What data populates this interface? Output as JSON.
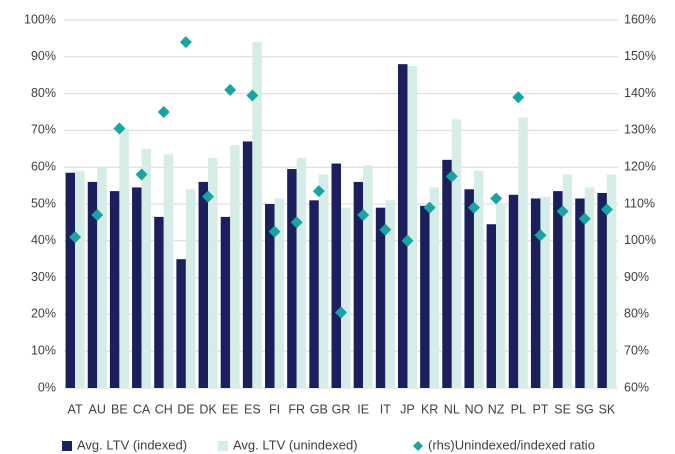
{
  "chart_data": {
    "type": "bar",
    "categories": [
      "AT",
      "AU",
      "BE",
      "CA",
      "CH",
      "DE",
      "DK",
      "EE",
      "ES",
      "FI",
      "FR",
      "GB",
      "GR",
      "IE",
      "IT",
      "JP",
      "KR",
      "NL",
      "NO",
      "NZ",
      "PL",
      "PT",
      "SE",
      "SG",
      "SK"
    ],
    "series": [
      {
        "name": "Avg. LTV (indexed)",
        "color": "#1b1f5c",
        "type": "bar",
        "values": [
          58.5,
          56,
          53.5,
          54.5,
          46.5,
          35,
          56,
          46.5,
          67,
          50,
          59.5,
          51,
          61,
          56,
          49,
          88,
          49.5,
          62,
          54,
          44.5,
          52.5,
          51.5,
          53.5,
          51.5,
          53
        ]
      },
      {
        "name": "Avg. LTV (unindexed)",
        "color": "#d5ece7",
        "type": "bar",
        "values": [
          59,
          60,
          70.5,
          65,
          63.5,
          54,
          62.5,
          66,
          94,
          51.5,
          62.5,
          58,
          49,
          60.5,
          51,
          87.5,
          54.5,
          73,
          59,
          50,
          73.5,
          52,
          58,
          54.5,
          58
        ]
      },
      {
        "name": "(rhs)Unindexed/indexed ratio",
        "color": "#1aa3a3",
        "type": "scatter",
        "axis": "y2",
        "values": [
          101,
          107,
          130.5,
          118,
          135,
          154,
          112,
          141,
          139.5,
          102.5,
          105,
          113.5,
          80.5,
          107,
          103,
          100,
          109,
          117.5,
          109,
          111.5,
          139,
          101.5,
          108,
          106,
          108.5
        ]
      }
    ],
    "ylim": [
      0,
      100
    ],
    "yticks": [
      {
        "value": 0,
        "label": "0%"
      },
      {
        "value": 10,
        "label": "10%"
      },
      {
        "value": 20,
        "label": "20%"
      },
      {
        "value": 30,
        "label": "30%"
      },
      {
        "value": 40,
        "label": "40%"
      },
      {
        "value": 50,
        "label": "50%"
      },
      {
        "value": 60,
        "label": "60%"
      },
      {
        "value": 70,
        "label": "70%"
      },
      {
        "value": 80,
        "label": "80%"
      },
      {
        "value": 90,
        "label": "90%"
      },
      {
        "value": 100,
        "label": "100%"
      }
    ],
    "y2lim": [
      60,
      160
    ],
    "y2ticks": [
      {
        "value": 60,
        "label": "60%"
      },
      {
        "value": 70,
        "label": "70%"
      },
      {
        "value": 80,
        "label": "80%"
      },
      {
        "value": 90,
        "label": "90%"
      },
      {
        "value": 100,
        "label": "100%"
      },
      {
        "value": 110,
        "label": "110%"
      },
      {
        "value": 120,
        "label": "120%"
      },
      {
        "value": 130,
        "label": "130%"
      },
      {
        "value": 140,
        "label": "140%"
      },
      {
        "value": 150,
        "label": "150%"
      },
      {
        "value": 160,
        "label": "160%"
      }
    ],
    "grid": true,
    "legend": "bottom"
  }
}
